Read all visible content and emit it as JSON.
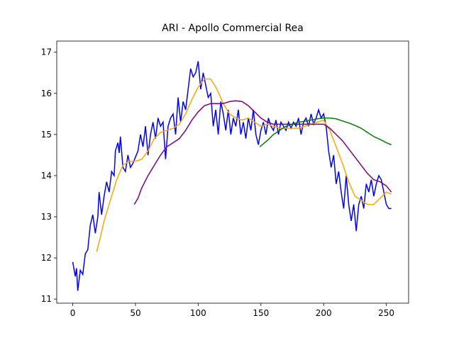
{
  "chart_data": {
    "type": "line",
    "title": "ARI - Apollo Commercial Rea",
    "xlim": [
      -12.75,
      267.75
    ],
    "ylim": [
      10.9,
      17.27
    ],
    "xticks": [
      0,
      50,
      100,
      150,
      200,
      250
    ],
    "yticks": [
      11,
      12,
      13,
      14,
      15,
      16,
      17
    ],
    "series": [
      {
        "color": "#0000ff",
        "x": [
          0,
          2,
          3,
          4,
          6,
          8,
          10,
          12,
          14,
          16,
          18,
          20,
          21,
          23,
          25,
          27,
          29,
          31,
          33,
          34,
          36,
          37,
          38,
          40,
          42,
          44,
          46,
          48,
          50,
          52,
          54,
          56,
          58,
          60,
          62,
          64,
          66,
          68,
          70,
          72,
          74,
          76,
          78,
          80,
          82,
          84,
          86,
          88,
          90,
          92,
          94,
          96,
          98,
          100,
          102,
          104,
          106,
          108,
          110,
          112,
          114,
          116,
          118,
          120,
          122,
          124,
          126,
          128,
          130,
          132,
          134,
          136,
          138,
          140,
          142,
          144,
          146,
          148,
          150,
          152,
          154,
          156,
          158,
          160,
          162,
          164,
          166,
          168,
          170,
          172,
          174,
          176,
          178,
          180,
          182,
          184,
          186,
          188,
          190,
          192,
          194,
          196,
          198,
          200,
          202,
          204,
          206,
          208,
          210,
          212,
          214,
          216,
          218,
          220,
          222,
          224,
          226,
          228,
          230,
          232,
          234,
          236,
          238,
          240,
          242,
          244,
          246,
          248,
          250,
          252,
          254
        ],
        "values": [
          11.9,
          11.55,
          11.75,
          11.2,
          11.7,
          11.6,
          12.1,
          12.2,
          12.8,
          13.05,
          12.6,
          13.0,
          13.6,
          13.05,
          13.5,
          13.85,
          13.6,
          14.1,
          14.0,
          14.6,
          14.8,
          14.55,
          14.95,
          14.2,
          14.1,
          14.5,
          14.2,
          14.3,
          14.45,
          14.6,
          15.0,
          14.7,
          15.2,
          14.5,
          15.0,
          15.3,
          14.9,
          15.4,
          15.2,
          15.3,
          14.4,
          15.2,
          15.4,
          15.5,
          15.0,
          15.9,
          15.3,
          15.8,
          15.6,
          16.1,
          16.6,
          16.4,
          16.5,
          16.78,
          16.1,
          16.5,
          16.2,
          15.9,
          16.0,
          15.2,
          15.6,
          15.0,
          15.8,
          15.5,
          15.1,
          15.6,
          15.0,
          15.4,
          15.2,
          15.6,
          15.0,
          15.3,
          14.9,
          15.4,
          15.1,
          15.6,
          15.0,
          14.75,
          15.1,
          15.3,
          15.0,
          15.4,
          15.2,
          15.1,
          15.35,
          15.0,
          15.3,
          15.2,
          15.1,
          15.3,
          15.15,
          15.3,
          15.2,
          15.4,
          15.0,
          15.3,
          15.4,
          15.2,
          15.5,
          15.25,
          15.4,
          15.6,
          15.4,
          15.5,
          15.2,
          14.6,
          14.2,
          14.5,
          13.8,
          14.1,
          13.6,
          13.2,
          14.0,
          13.3,
          12.9,
          13.3,
          12.65,
          13.3,
          13.5,
          13.2,
          13.8,
          13.6,
          13.9,
          13.5,
          13.8,
          14.0,
          13.9,
          13.6,
          13.3,
          13.2,
          13.2
        ]
      },
      {
        "color": "#ffa500",
        "x": [
          19,
          22,
          25,
          30,
          35,
          40,
          45,
          50,
          55,
          60,
          65,
          70,
          75,
          80,
          85,
          90,
          95,
          100,
          105,
          110,
          115,
          120,
          125,
          130,
          135,
          140,
          145,
          150,
          155,
          160,
          165,
          170,
          175,
          180,
          185,
          190,
          195,
          200,
          205,
          210,
          215,
          220,
          225,
          230,
          235,
          240,
          245,
          250,
          254
        ],
        "values": [
          12.15,
          12.5,
          12.9,
          13.4,
          13.9,
          14.25,
          14.35,
          14.35,
          14.4,
          14.6,
          14.9,
          15.05,
          15.1,
          15.15,
          15.25,
          15.5,
          15.85,
          16.15,
          16.35,
          16.35,
          16.1,
          15.75,
          15.5,
          15.4,
          15.35,
          15.4,
          15.3,
          15.2,
          15.25,
          15.2,
          15.15,
          15.15,
          15.15,
          15.15,
          15.2,
          15.25,
          15.3,
          15.35,
          15.1,
          14.7,
          14.3,
          13.85,
          13.5,
          13.4,
          13.3,
          13.3,
          13.45,
          13.6,
          13.55
        ]
      },
      {
        "color": "#800080",
        "x": [
          49,
          52,
          55,
          60,
          65,
          70,
          75,
          80,
          85,
          90,
          95,
          100,
          105,
          110,
          115,
          120,
          125,
          130,
          135,
          140,
          145,
          150,
          155,
          160,
          165,
          170,
          175,
          180,
          185,
          190,
          195,
          200,
          205,
          210,
          215,
          220,
          225,
          230,
          235,
          240,
          245,
          250,
          254
        ],
        "values": [
          13.3,
          13.45,
          13.7,
          14.0,
          14.25,
          14.5,
          14.7,
          14.8,
          14.9,
          15.1,
          15.35,
          15.55,
          15.7,
          15.75,
          15.75,
          15.75,
          15.8,
          15.82,
          15.8,
          15.7,
          15.55,
          15.4,
          15.3,
          15.25,
          15.25,
          15.25,
          15.25,
          15.25,
          15.25,
          15.25,
          15.25,
          15.25,
          15.15,
          15.0,
          14.85,
          14.65,
          14.45,
          14.25,
          14.05,
          13.9,
          13.85,
          13.75,
          13.6
        ]
      },
      {
        "color": "#008000",
        "x": [
          149,
          155,
          160,
          165,
          170,
          175,
          180,
          185,
          190,
          195,
          200,
          205,
          210,
          215,
          220,
          225,
          230,
          235,
          240,
          245,
          250,
          254
        ],
        "values": [
          14.7,
          14.85,
          15.0,
          15.1,
          15.2,
          15.25,
          15.3,
          15.32,
          15.35,
          15.38,
          15.4,
          15.4,
          15.38,
          15.33,
          15.28,
          15.22,
          15.15,
          15.05,
          14.95,
          14.88,
          14.8,
          14.75
        ]
      }
    ]
  }
}
